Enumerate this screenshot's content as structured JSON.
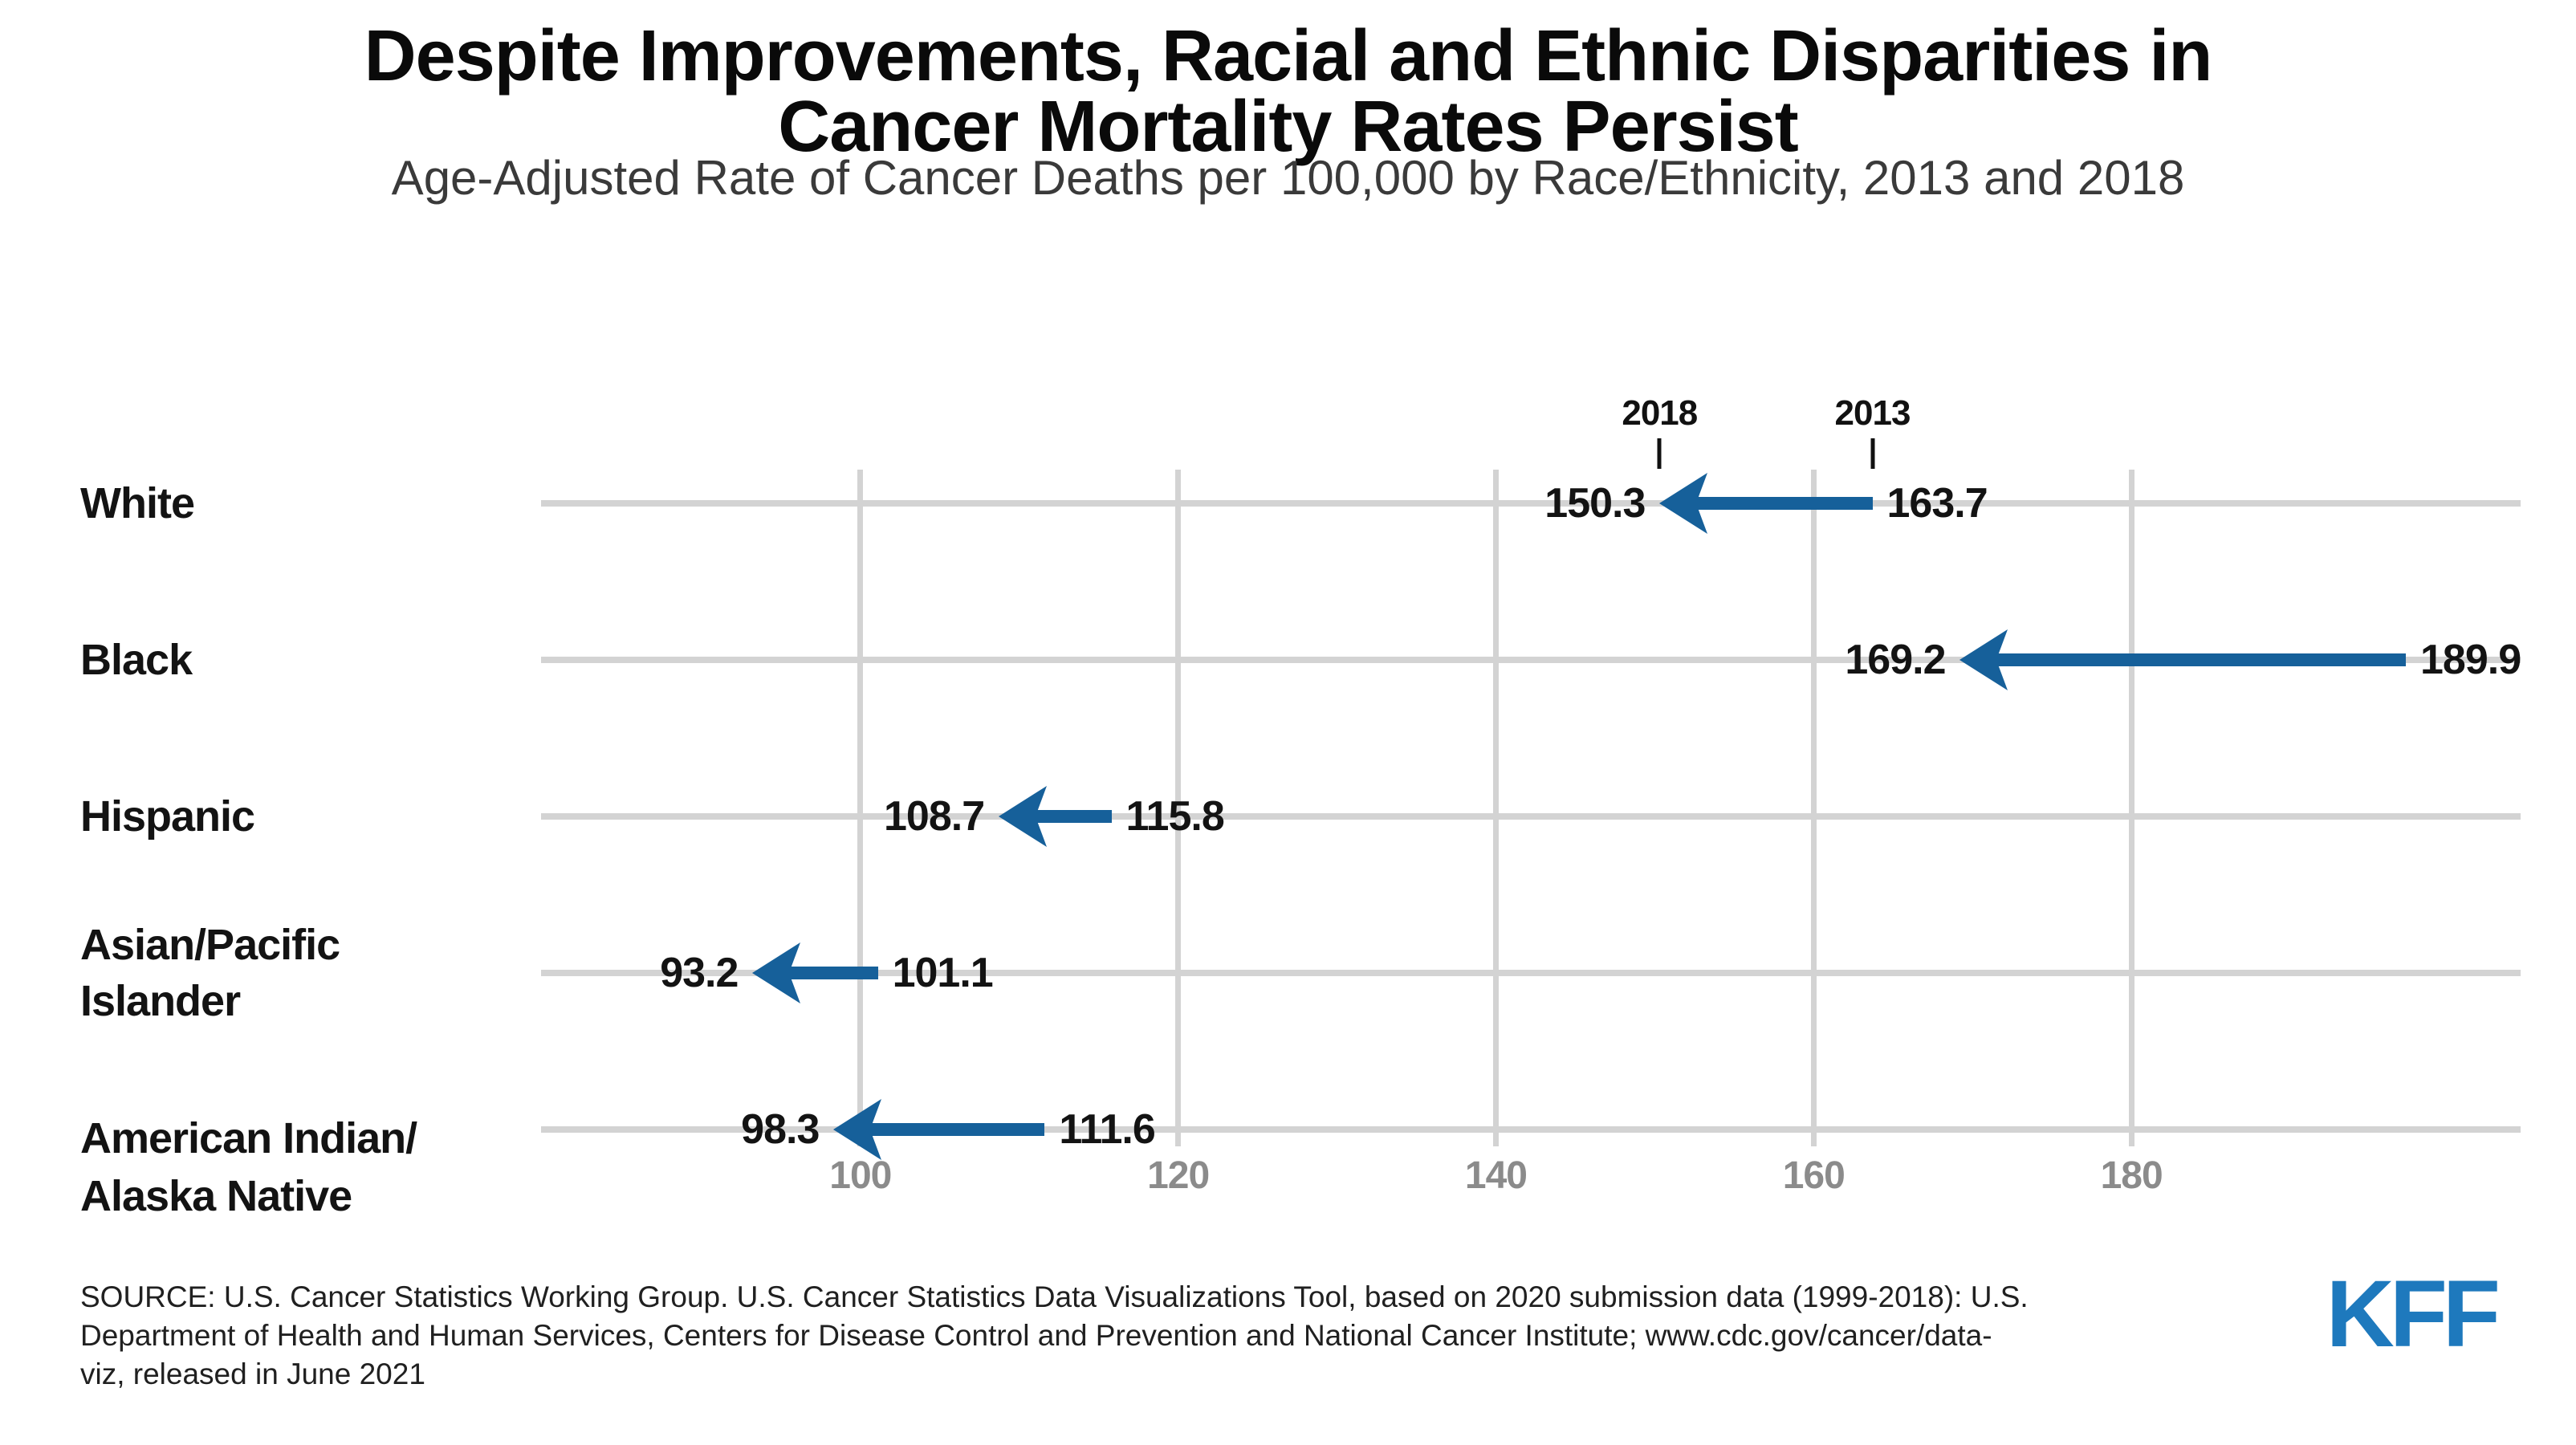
{
  "header": {
    "title_line1": "Despite Improvements, Racial and Ethnic Disparities in",
    "title_line2": "Cancer Mortality Rates Persist",
    "subtitle": "Age-Adjusted Rate of Cancer Deaths per 100,000 by Race/Ethnicity, 2013 and 2018"
  },
  "chart_data": {
    "type": "arrow",
    "title": "Despite Improvements, Racial and Ethnic Disparities in Cancer Mortality Rates Persist",
    "subtitle": "Age-Adjusted Rate of Cancer Deaths per 100,000 by Race/Ethnicity, 2013 and 2018",
    "categories": [
      "White",
      "Black",
      "Hispanic",
      "Asian/Pacific Islander",
      "American Indian/Alaska Native"
    ],
    "category_label_lines": [
      [
        "White"
      ],
      [
        "Black"
      ],
      [
        "Hispanic"
      ],
      [
        "Asian/Pacific",
        "Islander"
      ],
      [
        "American Indian/",
        "Alaska Native"
      ]
    ],
    "series": [
      {
        "name": "2013",
        "values": [
          163.7,
          189.9,
          115.8,
          101.1,
          111.6
        ]
      },
      {
        "name": "2018",
        "values": [
          150.3,
          169.2,
          108.7,
          93.2,
          98.3
        ]
      }
    ],
    "year_labels": [
      "2018",
      "2013"
    ],
    "x_ticks": [
      "100",
      "120",
      "140",
      "160",
      "180"
    ],
    "x_tick_values": [
      100,
      120,
      140,
      160,
      180
    ],
    "xlim": [
      79.9,
      204.5
    ],
    "grid": true,
    "legend_position": "above-first-row",
    "arrow_direction": "left",
    "colors": {
      "arrow_blue": "#16609a",
      "gridline_gray": "#d3d3d3",
      "tick_label_gray": "#8b8b8b",
      "label_black": "#131313",
      "logo_blue": "#1e79bd"
    }
  },
  "footer": {
    "source_line1": "SOURCE: U.S. Cancer Statistics Working Group. U.S. Cancer Statistics Data Visualizations Tool, based on 2020 submission data (1999-2018): U.S.",
    "source_line2": "Department of Health and Human Services, Centers for Disease Control and Prevention and National Cancer Institute; www.cdc.gov/cancer/data-",
    "source_line3": "viz, released in June 2021",
    "logo_text": "KFF"
  }
}
